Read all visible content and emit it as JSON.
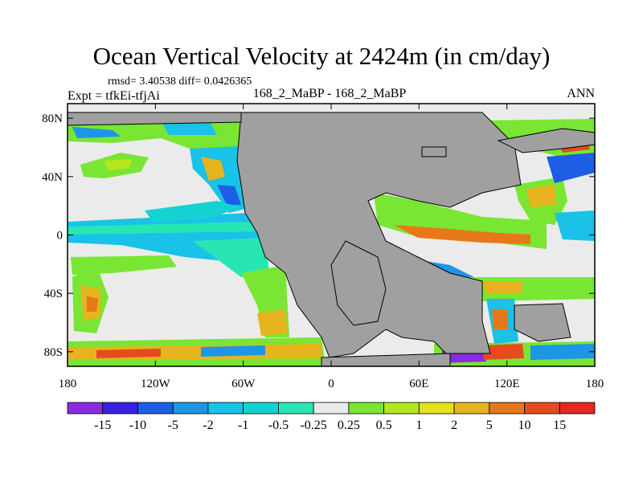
{
  "figure": {
    "title": "Ocean Vertical Velocity at 2424m (in cm/day)",
    "stats": "rmsd= 3.40538 diff= 0.0426365",
    "expt": "Expt = tfkEi-tfjAi",
    "comparison": "168_2_MaBP - 168_2_MaBP",
    "season": "ANN"
  },
  "map": {
    "projection": "cylindrical equidistant",
    "lon_range": [
      -180,
      180
    ],
    "lat_range": [
      -90,
      90
    ],
    "land_color": "#a0a0a0",
    "x_ticks": [
      {
        "value": -180,
        "label": "180"
      },
      {
        "value": -120,
        "label": "120W"
      },
      {
        "value": -60,
        "label": "60W"
      },
      {
        "value": 0,
        "label": "0"
      },
      {
        "value": 60,
        "label": "60E"
      },
      {
        "value": 120,
        "label": "120E"
      },
      {
        "value": 180,
        "label": "180"
      }
    ],
    "y_ticks": [
      {
        "value": 80,
        "label": "80N"
      },
      {
        "value": 40,
        "label": "40N"
      },
      {
        "value": 0,
        "label": "0"
      },
      {
        "value": -40,
        "label": "40S"
      },
      {
        "value": -80,
        "label": "80S"
      }
    ]
  },
  "colorbar": {
    "labels": [
      "-15",
      "-10",
      "-5",
      "-2",
      "-1",
      "-0.5",
      "-0.25",
      "0.25",
      "0.5",
      "1",
      "2",
      "5",
      "10",
      "15"
    ],
    "colors": [
      "#8a2be2",
      "#3a20e0",
      "#1e5ee6",
      "#1e96e6",
      "#19c2e6",
      "#14d2d2",
      "#28e6b4",
      "#ebebeb",
      "#78e632",
      "#b4e61e",
      "#e6e119",
      "#e6b41e",
      "#e67819",
      "#e64b1e",
      "#e6281e"
    ]
  }
}
